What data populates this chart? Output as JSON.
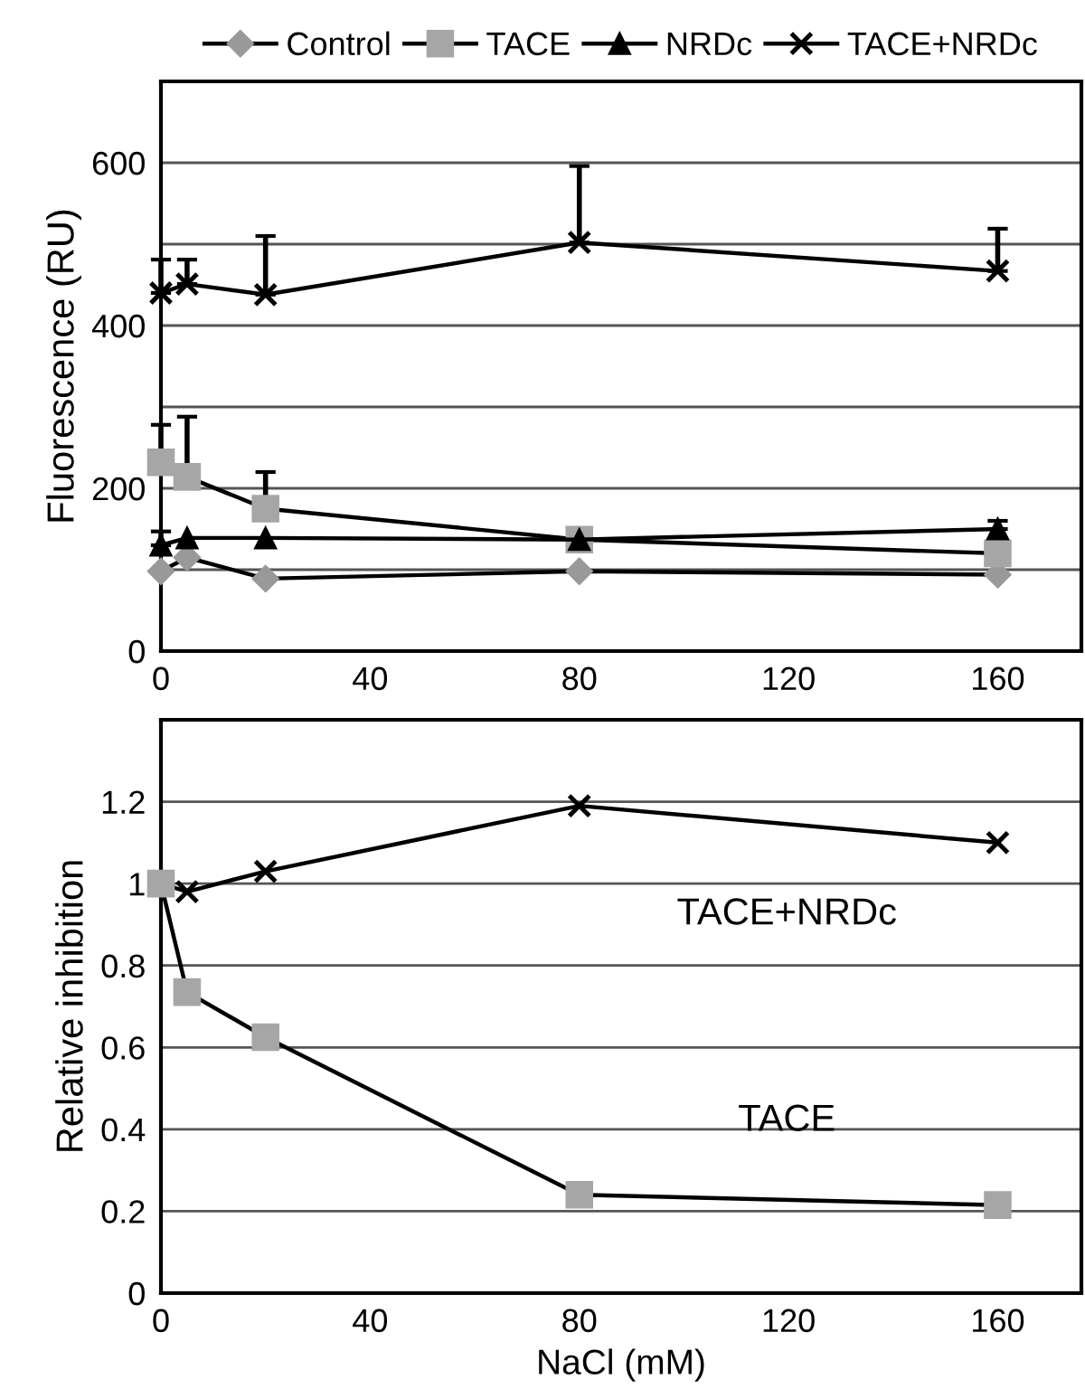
{
  "chart_data": [
    {
      "type": "line",
      "ylabel": "Fluorescence (RU)",
      "x": [
        0,
        5,
        20,
        80,
        160
      ],
      "xlim": [
        0,
        176
      ],
      "xticks": [
        0,
        40,
        80,
        120,
        160
      ],
      "ylim": [
        0,
        700
      ],
      "yticks": [
        0,
        {
          "value": 100,
          "label": null
        },
        200,
        {
          "value": 300,
          "label": null
        },
        400,
        {
          "value": 500,
          "label": null
        },
        600
      ],
      "grid": "y",
      "legend": "top",
      "series": [
        {
          "name": "Control",
          "color": "#999999",
          "marker": "diamond",
          "values": [
            98,
            115,
            89,
            98,
            94
          ]
        },
        {
          "name": "TACE",
          "color": "#a6a6a6",
          "marker": "square",
          "values": [
            232,
            214,
            175,
            137,
            120
          ],
          "errors": [
            [
              232,
              278
            ],
            [
              214,
              288
            ],
            [
              175,
              220
            ],
            null,
            null
          ]
        },
        {
          "name": "NRDc",
          "color": "#000000",
          "marker": "triangle",
          "values": [
            130,
            139,
            139,
            137,
            150
          ],
          "errors": [
            [
              130,
              147
            ],
            null,
            null,
            null,
            [
              150,
              160
            ]
          ]
        },
        {
          "name": "TACE+NRDc",
          "color": "#000000",
          "marker": "cross",
          "values": [
            440,
            451,
            438,
            502,
            467
          ],
          "errors": [
            [
              440,
              481
            ],
            [
              451,
              481
            ],
            [
              438,
              510
            ],
            [
              502,
              596
            ],
            [
              467,
              519
            ]
          ]
        }
      ]
    },
    {
      "type": "line",
      "xlabel": "NaCl (mM)",
      "ylabel": "Relative inhibition",
      "x": [
        0,
        5,
        20,
        80,
        160
      ],
      "xlim": [
        0,
        176
      ],
      "xticks": [
        0,
        40,
        80,
        120,
        160
      ],
      "ylim": [
        0,
        1.4
      ],
      "yticks": [
        0,
        0.2,
        0.4,
        0.6,
        0.8,
        1,
        1.2
      ],
      "grid": "y",
      "series": [
        {
          "name": "TACE+NRDc",
          "color": "#000000",
          "marker": "cross",
          "values": [
            1.0,
            0.98,
            1.03,
            1.19,
            1.1
          ]
        },
        {
          "name": "TACE",
          "color": "#a6a6a6",
          "marker": "square",
          "values": [
            1.0,
            0.735,
            0.625,
            0.24,
            0.215
          ]
        }
      ]
    }
  ]
}
